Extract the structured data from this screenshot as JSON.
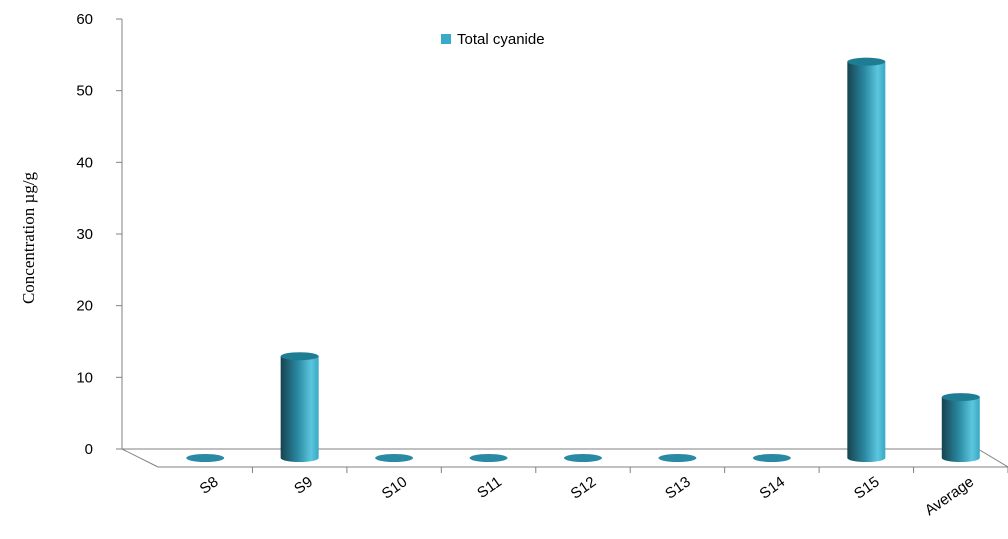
{
  "chart_data": {
    "type": "bar",
    "categories": [
      "S8",
      "S9",
      "S10",
      "S11",
      "S12",
      "S13",
      "S14",
      "S15",
      "Average"
    ],
    "series": [
      {
        "name": "Total cyanide",
        "values": [
          0,
          14.2,
          0,
          0,
          0,
          0,
          0,
          55.3,
          8.5
        ]
      }
    ],
    "ylabel": "Concentration µg/g",
    "xlabel": "",
    "ylim": [
      0,
      60
    ],
    "yticks": [
      0,
      10,
      20,
      30,
      40,
      50,
      60
    ],
    "legend_position": "top-center",
    "grid": false,
    "colors": {
      "bar_light": "#5cc3dc",
      "bar_mid": "#2fa3c0",
      "bar_dark": "#1c5a6a",
      "bar_top": "#1f7d93",
      "legend_swatch": "#39aac8",
      "axis": "#808080"
    }
  }
}
